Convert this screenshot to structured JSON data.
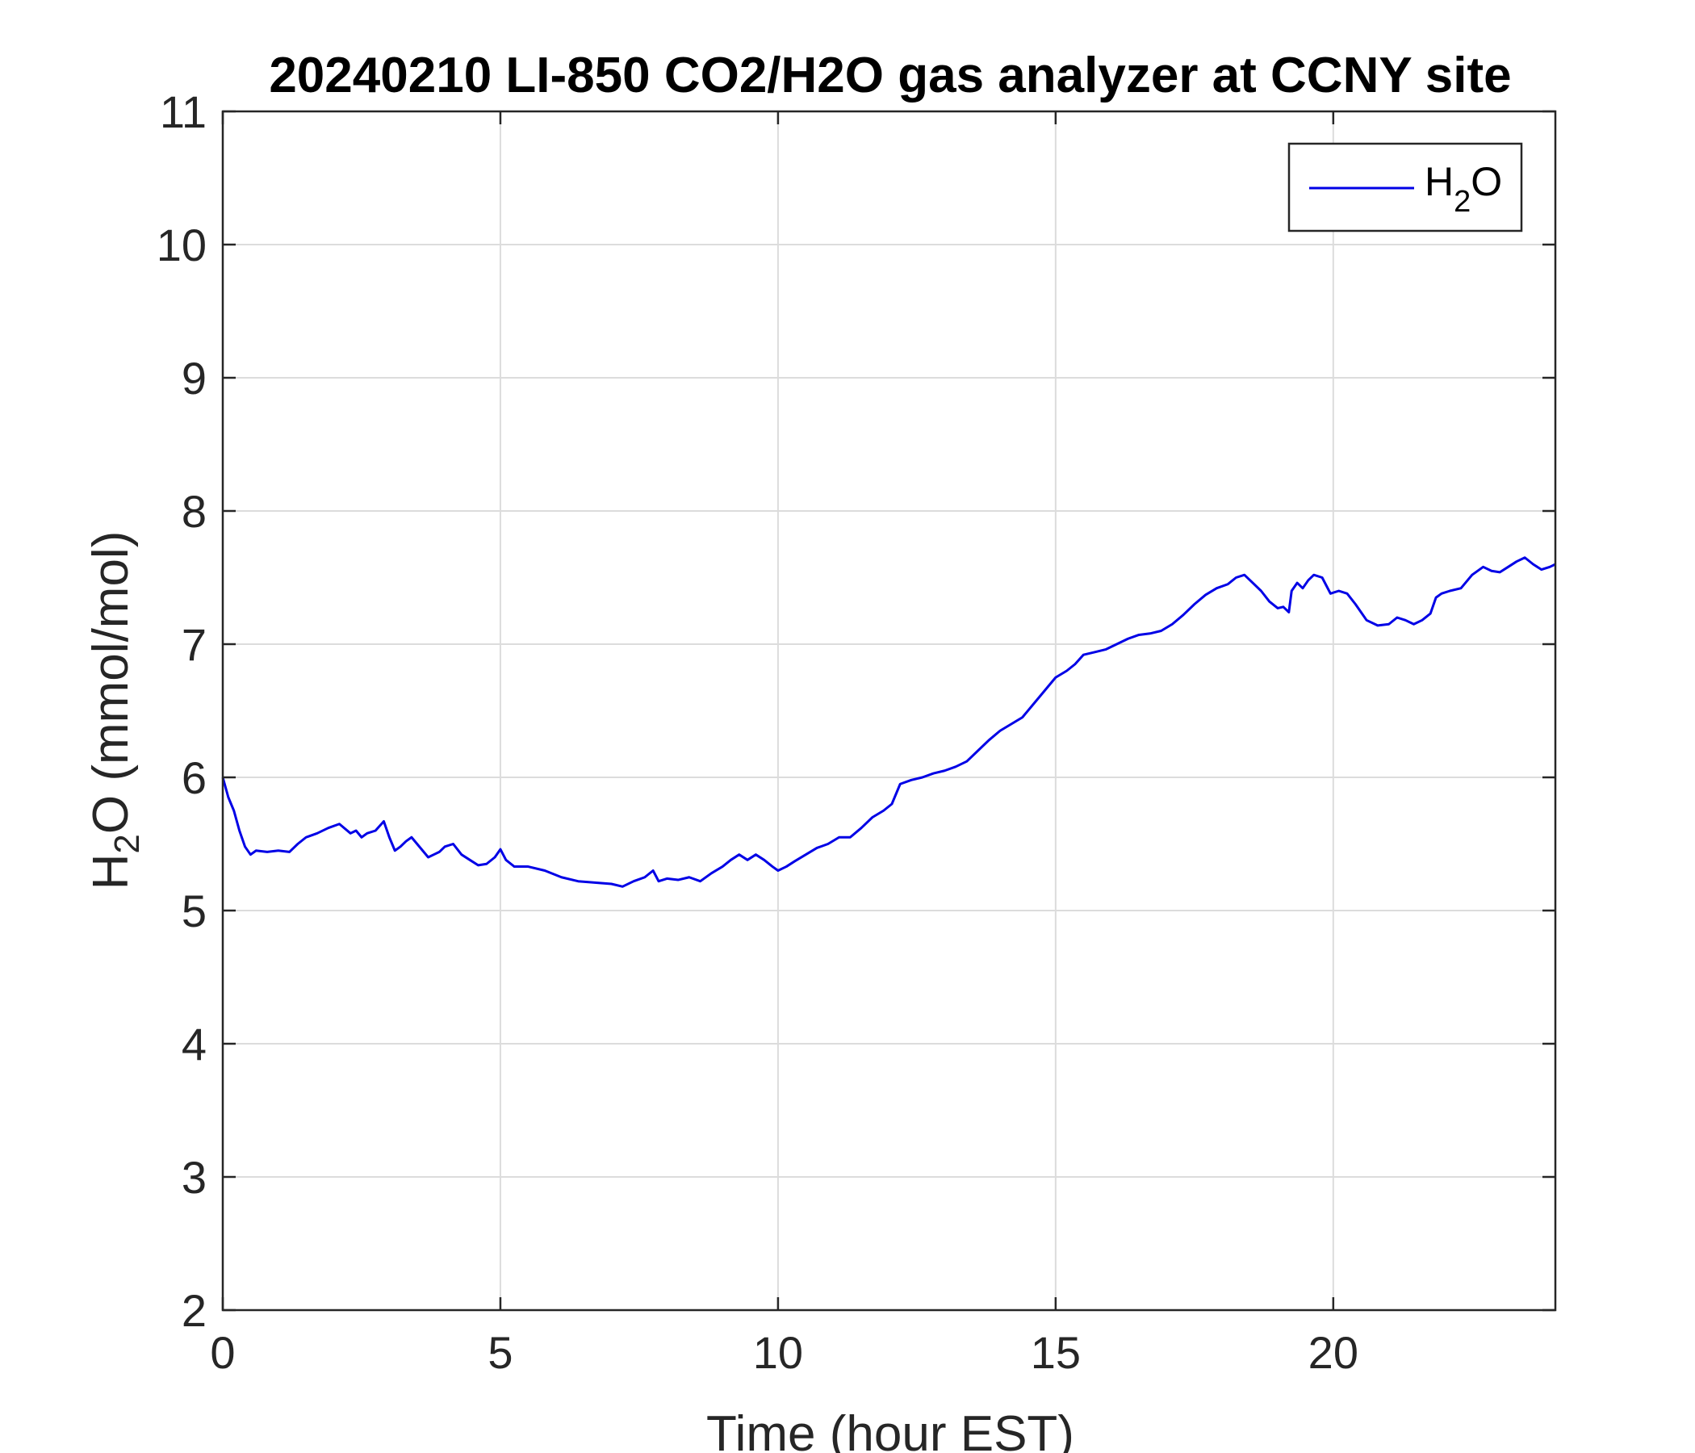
{
  "chart_data": {
    "type": "line",
    "title": "20240210 LI-850 CO2/H2O gas analyzer at CCNY site",
    "xlabel": "Time (hour EST)",
    "ylabel_main": "H",
    "ylabel_sub": "2",
    "ylabel_rest": "O (mmol/mol)",
    "xlim": [
      0,
      24
    ],
    "ylim": [
      2,
      11
    ],
    "xticks": [
      0,
      5,
      10,
      15,
      20
    ],
    "yticks": [
      2,
      3,
      4,
      5,
      6,
      7,
      8,
      9,
      10,
      11
    ],
    "grid": true,
    "legend_position": "top-right",
    "series": [
      {
        "legend_main": "H",
        "legend_sub": "2",
        "legend_rest": "O",
        "color": "#0000e6",
        "x": [
          0,
          0.1,
          0.2,
          0.3,
          0.4,
          0.5,
          0.6,
          0.8,
          1.0,
          1.2,
          1.35,
          1.5,
          1.7,
          1.9,
          2.1,
          2.3,
          2.4,
          2.5,
          2.6,
          2.75,
          2.9,
          3.0,
          3.1,
          3.2,
          3.3,
          3.4,
          3.5,
          3.6,
          3.7,
          3.8,
          3.9,
          4.0,
          4.15,
          4.3,
          4.45,
          4.6,
          4.75,
          4.9,
          5.0,
          5.1,
          5.25,
          5.5,
          5.8,
          6.1,
          6.4,
          6.7,
          7.0,
          7.2,
          7.4,
          7.6,
          7.75,
          7.85,
          8.0,
          8.2,
          8.4,
          8.6,
          8.8,
          9.0,
          9.15,
          9.3,
          9.45,
          9.6,
          9.75,
          9.9,
          10.0,
          10.15,
          10.3,
          10.5,
          10.7,
          10.9,
          11.1,
          11.3,
          11.5,
          11.7,
          11.9,
          12.05,
          12.2,
          12.4,
          12.6,
          12.8,
          13.0,
          13.2,
          13.4,
          13.6,
          13.8,
          14.0,
          14.2,
          14.4,
          14.6,
          14.8,
          15.0,
          15.2,
          15.35,
          15.5,
          15.7,
          15.9,
          16.1,
          16.3,
          16.5,
          16.7,
          16.9,
          17.1,
          17.3,
          17.5,
          17.7,
          17.9,
          18.1,
          18.25,
          18.4,
          18.55,
          18.7,
          18.85,
          19.0,
          19.1,
          19.2,
          19.25,
          19.35,
          19.45,
          19.55,
          19.65,
          19.8,
          19.95,
          20.1,
          20.25,
          20.4,
          20.6,
          20.8,
          21.0,
          21.15,
          21.3,
          21.45,
          21.6,
          21.75,
          21.85,
          21.95,
          22.1,
          22.3,
          22.5,
          22.7,
          22.85,
          23.0,
          23.15,
          23.3,
          23.45,
          23.6,
          23.75,
          23.9,
          24.0
        ],
        "y": [
          6.0,
          5.85,
          5.75,
          5.6,
          5.48,
          5.42,
          5.45,
          5.44,
          5.45,
          5.44,
          5.5,
          5.55,
          5.58,
          5.62,
          5.65,
          5.58,
          5.6,
          5.55,
          5.58,
          5.6,
          5.67,
          5.55,
          5.45,
          5.48,
          5.52,
          5.55,
          5.5,
          5.45,
          5.4,
          5.42,
          5.44,
          5.48,
          5.5,
          5.42,
          5.38,
          5.34,
          5.35,
          5.4,
          5.46,
          5.38,
          5.33,
          5.33,
          5.3,
          5.25,
          5.22,
          5.21,
          5.2,
          5.18,
          5.22,
          5.25,
          5.3,
          5.22,
          5.24,
          5.23,
          5.25,
          5.22,
          5.28,
          5.33,
          5.38,
          5.42,
          5.38,
          5.42,
          5.38,
          5.33,
          5.3,
          5.33,
          5.37,
          5.42,
          5.47,
          5.5,
          5.55,
          5.55,
          5.62,
          5.7,
          5.75,
          5.8,
          5.95,
          5.98,
          6.0,
          6.03,
          6.05,
          6.08,
          6.12,
          6.2,
          6.28,
          6.35,
          6.4,
          6.45,
          6.55,
          6.65,
          6.75,
          6.8,
          6.85,
          6.92,
          6.94,
          6.96,
          7.0,
          7.04,
          7.07,
          7.08,
          7.1,
          7.15,
          7.22,
          7.3,
          7.37,
          7.42,
          7.45,
          7.5,
          7.52,
          7.46,
          7.4,
          7.32,
          7.27,
          7.28,
          7.24,
          7.4,
          7.46,
          7.42,
          7.48,
          7.52,
          7.5,
          7.38,
          7.4,
          7.38,
          7.3,
          7.18,
          7.14,
          7.15,
          7.2,
          7.18,
          7.15,
          7.18,
          7.23,
          7.35,
          7.38,
          7.4,
          7.42,
          7.52,
          7.58,
          7.55,
          7.54,
          7.58,
          7.62,
          7.65,
          7.6,
          7.56,
          7.58,
          7.6
        ]
      }
    ]
  }
}
